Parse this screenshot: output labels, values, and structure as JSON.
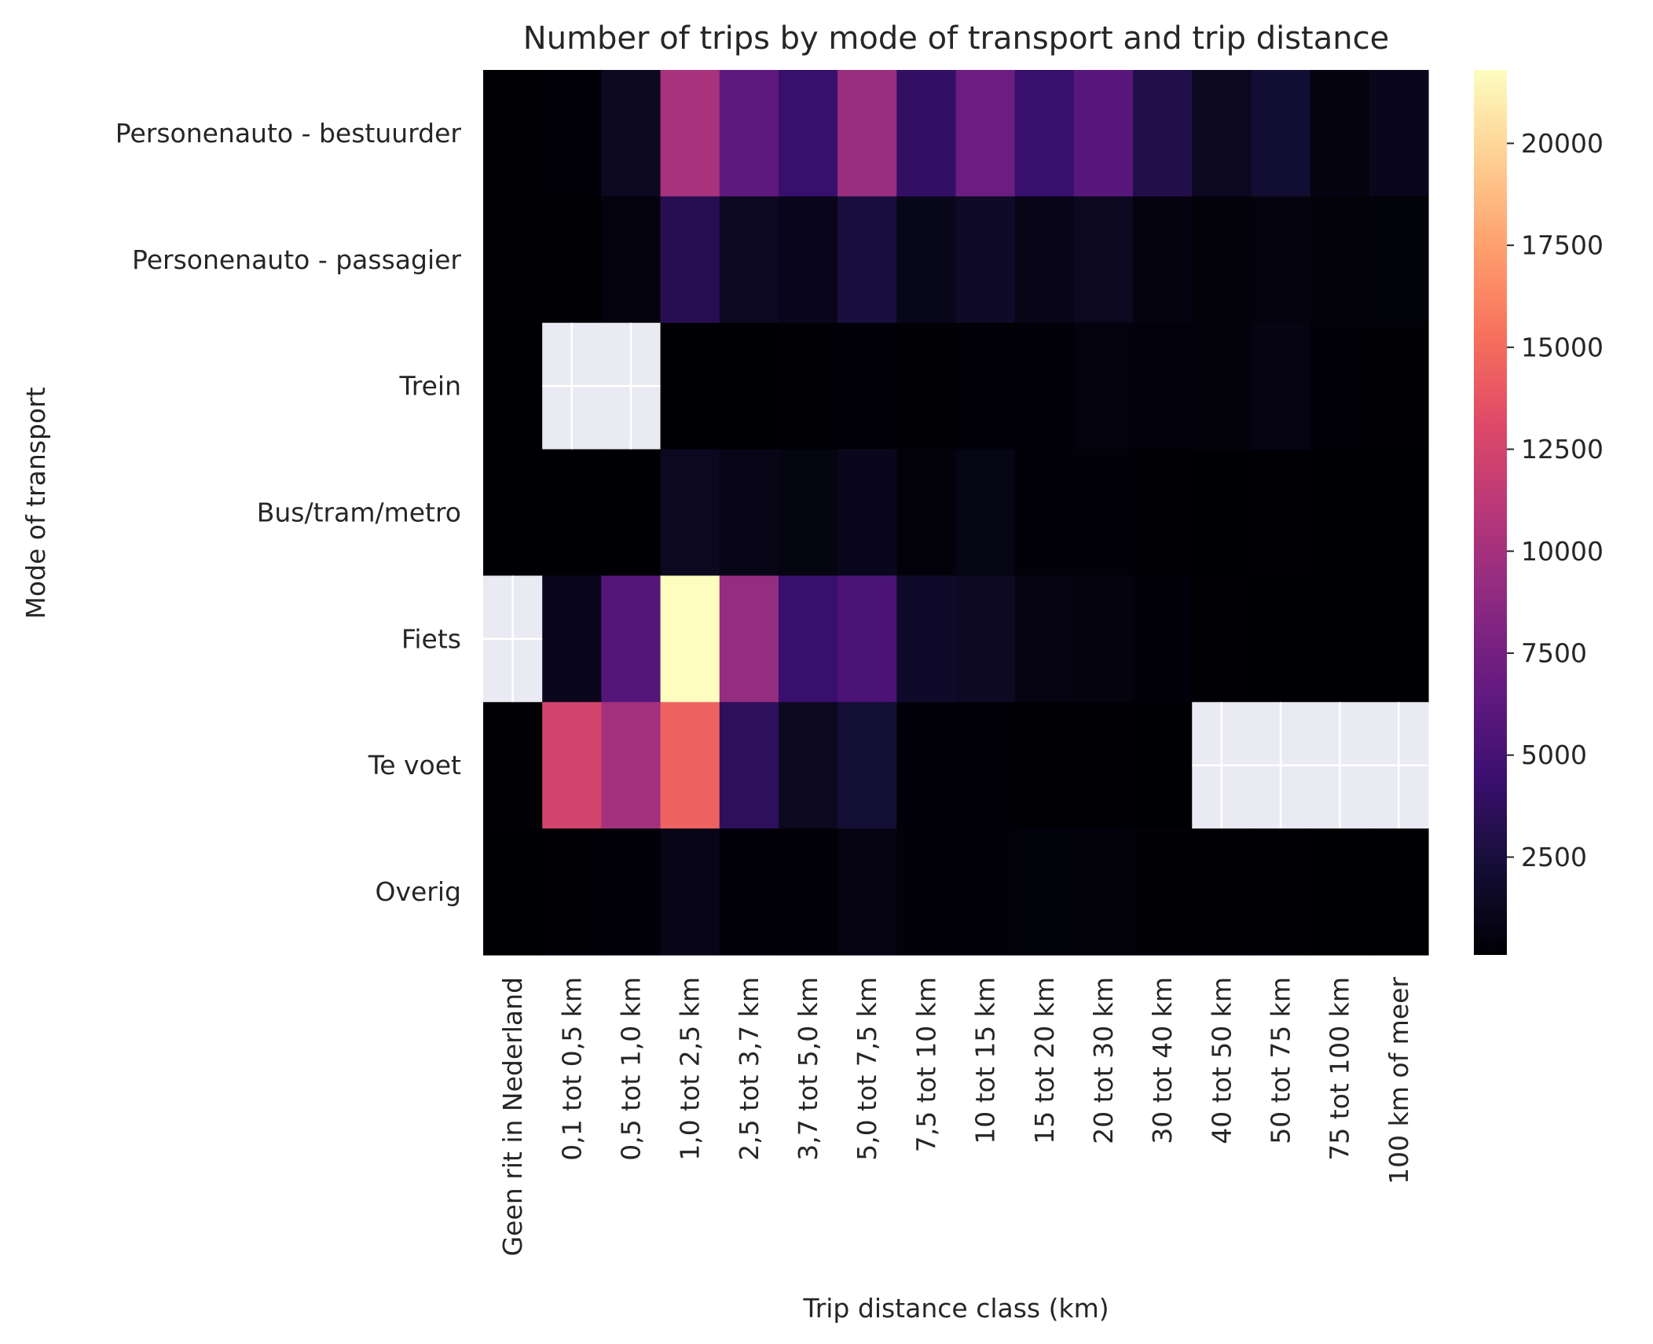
{
  "chart_data": {
    "type": "heatmap",
    "title": "Number of trips by mode of transport and trip distance",
    "xlabel": "Trip distance class (km)",
    "ylabel": "Mode of transport",
    "colormap": "magma",
    "missing_color": "#eaeaf2",
    "categories_x": [
      "Geen rit in Nederland",
      "0,1 tot 0,5 km",
      "0,5 tot 1,0 km",
      "1,0 tot 2,5 km",
      "2,5 tot 3,7 km",
      "3,7 tot 5,0 km",
      "5,0 tot 7,5 km",
      "7,5 tot 10 km",
      "10 tot 15 km",
      "15 tot 20 km",
      "20 tot 30 km",
      "30 tot 40 km",
      "40 tot 50 km",
      "50 tot 75 km",
      "75 tot 100 km",
      "100 km of meer"
    ],
    "categories_y": [
      "Personenauto - bestuurder",
      "Personenauto - passagier",
      "Trein",
      "Bus/tram/metro",
      "Fiets",
      "Te voet",
      "Overig"
    ],
    "values": [
      [
        150,
        250,
        1300,
        10200,
        6300,
        4300,
        9500,
        4000,
        7000,
        4300,
        6000,
        3000,
        1300,
        2100,
        600,
        1200
      ],
      [
        150,
        150,
        500,
        3300,
        1400,
        1100,
        2600,
        1000,
        1600,
        900,
        1300,
        600,
        400,
        500,
        400,
        350
      ],
      [
        120,
        null,
        null,
        120,
        120,
        150,
        250,
        200,
        250,
        300,
        500,
        450,
        400,
        700,
        250,
        200
      ],
      [
        100,
        100,
        120,
        1300,
        900,
        650,
        1200,
        400,
        800,
        300,
        300,
        150,
        120,
        150,
        100,
        80
      ],
      [
        null,
        1200,
        5800,
        21800,
        9200,
        4300,
        5300,
        1700,
        1500,
        700,
        550,
        300,
        150,
        120,
        80,
        60
      ],
      [
        150,
        12500,
        10000,
        14500,
        3700,
        1300,
        2200,
        300,
        250,
        150,
        150,
        120,
        null,
        null,
        null,
        null
      ],
      [
        100,
        150,
        300,
        900,
        300,
        250,
        700,
        250,
        300,
        350,
        400,
        200,
        150,
        150,
        100,
        100
      ]
    ],
    "colorbar": {
      "min": 100,
      "max": 21800,
      "ticks": [
        2500,
        5000,
        7500,
        10000,
        12500,
        15000,
        17500,
        20000
      ],
      "tick_labels": [
        "2500",
        "5000",
        "7500",
        "10000",
        "12500",
        "15000",
        "17500",
        "20000"
      ]
    }
  }
}
